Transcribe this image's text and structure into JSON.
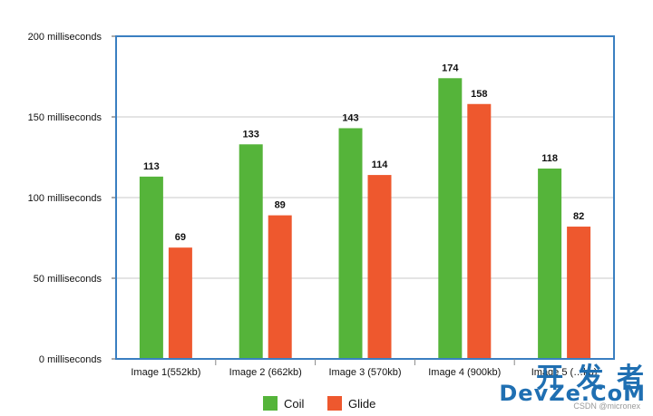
{
  "chart_data": {
    "type": "bar",
    "categories": [
      "Image 1(552kb)",
      "Image 2 (662kb)",
      "Image 3 (570kb)",
      "Image 4 (900kb)",
      "Image 5 (…kb)"
    ],
    "series": [
      {
        "name": "Coil",
        "values": [
          113,
          133,
          143,
          174,
          118
        ],
        "color": "#55b43a"
      },
      {
        "name": "Glide",
        "values": [
          69,
          89,
          114,
          158,
          82
        ],
        "color": "#ee582e"
      }
    ],
    "data_labels": {
      "Coil": [
        "113",
        "133",
        "143",
        "174",
        "118"
      ],
      "Glide": [
        "69",
        "89",
        "114",
        "158",
        "82"
      ]
    },
    "y_ticks": [
      0,
      50,
      100,
      150,
      200
    ],
    "y_tick_labels": [
      "0 milliseconds",
      "50 milliseconds",
      "100 milliseconds",
      "150 milliseconds",
      "200 milliseconds"
    ],
    "ylim": [
      0,
      200
    ],
    "grid": true,
    "legend_position": "bottom-center",
    "frame_color": "#3a7fc1",
    "grid_color": "#c8c8c8"
  },
  "watermark": {
    "line1": "开 发 者",
    "line2": "DevZe.CoM",
    "line3": "CSDN @micronex"
  }
}
